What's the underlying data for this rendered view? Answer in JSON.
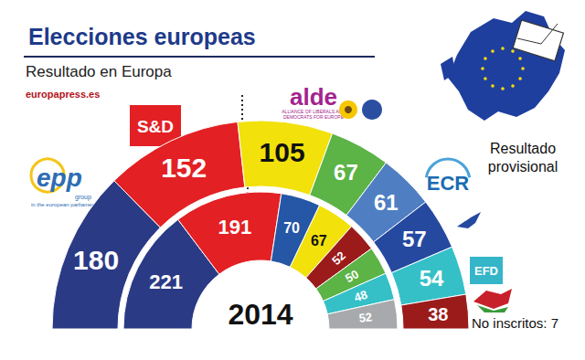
{
  "chart_data": {
    "type": "pie",
    "title": "Elecciones europeas",
    "subtitle": "Resultado en Europa",
    "source": "europapress.es",
    "annotations": [
      "Resultado provisional",
      "No inscritos: 7"
    ],
    "data_labels": true,
    "rings": [
      {
        "values": [
          180,
          152,
          105,
          67,
          61,
          57,
          54,
          38
        ],
        "colors": [
          "#2b3a85",
          "#e32024",
          "#f2e10a",
          "#5cb346",
          "#4f7fc2",
          "#2649a0",
          "#35c0c8",
          "#9b1b1b"
        ]
      },
      {
        "label": "2014",
        "values": [
          221,
          191,
          70,
          67,
          52,
          50,
          48,
          52
        ],
        "colors": [
          "#2b3a85",
          "#e32024",
          "#2557a6",
          "#f2e10a",
          "#9b1b1b",
          "#5cb346",
          "#35c0c8",
          "#a7a9ac"
        ]
      }
    ],
    "logos": [
      {
        "text": "epp",
        "color": "#2e6db4",
        "subtext": [
          "group",
          "in the european parliament"
        ]
      },
      {
        "text": "S&D",
        "color": "#e32024"
      },
      {
        "text": "alde",
        "color": "#a3238e",
        "subtext": [
          "ALLIANCE OF LIBERALS AND",
          "DEMOCRATS FOR EUROPE"
        ]
      },
      {
        "text": "ECR",
        "color": "#1a6bb3"
      },
      {
        "text": "EFD",
        "color": "#35b5c8"
      }
    ]
  }
}
